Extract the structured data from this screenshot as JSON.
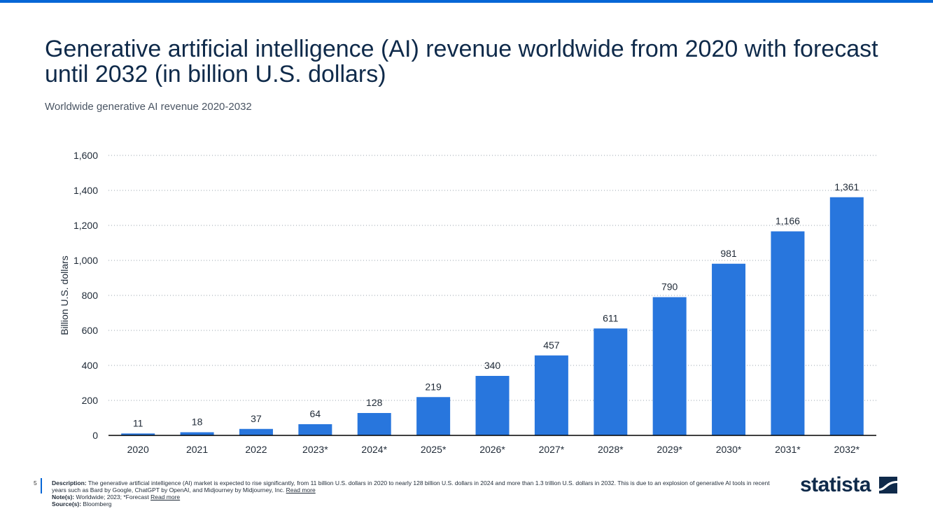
{
  "title": "Generative artificial intelligence (AI) revenue worldwide from 2020 with forecast until 2032 (in billion U.S. dollars)",
  "subtitle": "Worldwide generative AI revenue 2020-2032",
  "chart_data": {
    "type": "bar",
    "categories": [
      "2020",
      "2021",
      "2022",
      "2023*",
      "2024*",
      "2025*",
      "2026*",
      "2027*",
      "2028*",
      "2029*",
      "2030*",
      "2031*",
      "2032*"
    ],
    "values": [
      11,
      18,
      37,
      64,
      128,
      219,
      340,
      457,
      611,
      790,
      981,
      1166,
      1361
    ],
    "value_labels": [
      "11",
      "18",
      "37",
      "64",
      "128",
      "219",
      "340",
      "457",
      "611",
      "790",
      "981",
      "1,166",
      "1,361"
    ],
    "ylabel": "Billion U.S. dollars",
    "ylim": [
      0,
      1600
    ],
    "yticks": [
      0,
      200,
      400,
      600,
      800,
      1000,
      1200,
      1400,
      1600
    ],
    "ytick_labels": [
      "0",
      "200",
      "400",
      "600",
      "800",
      "1,000",
      "1,200",
      "1,400",
      "1,600"
    ],
    "grid": true,
    "bar_color": "#2876dd"
  },
  "footer": {
    "page": "5",
    "description_label": "Description:",
    "description": " The generative artificial intelligence (AI) market is expected to rise significantly, from 11 billion U.S. dollars in 2020 to nearly 128 billion U.S. dollars in 2024 and more than 1.3 trillion U.S. dollars in 2032. This is due to an explosion of generative AI tools in recent years such as Bard by Google, ChatGPT by OpenAI, and Midjourney by Midjourney, Inc. ",
    "read_more": "Read more",
    "notes_label": "Note(s):",
    "notes": " Worldwide; 2023; *Forecast ",
    "sources_label": "Source(s):",
    "sources": " Bloomberg"
  },
  "logo": "statista"
}
